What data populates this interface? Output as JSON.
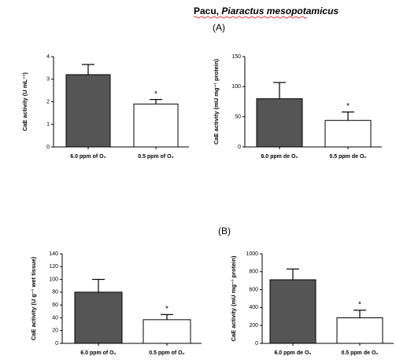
{
  "title": {
    "plain": "Pacu,",
    "italic": "Piaractus mesopotamicus"
  },
  "panels": [
    "(A)",
    "(B)"
  ],
  "chart_data": [
    {
      "type": "bar",
      "y_label": "CaE activity (U mL⁻¹)",
      "categories": [
        "6.0 ppm of O₂",
        "0.5 ppm of O₂"
      ],
      "values": [
        3.2,
        1.9
      ],
      "errors": [
        0.45,
        0.2
      ],
      "colors": [
        "#555555",
        "#ffffff"
      ],
      "annotations": [
        "*"
      ],
      "ylim": [
        0,
        4
      ],
      "yticks": [
        0,
        1,
        2,
        3,
        4
      ]
    },
    {
      "type": "bar",
      "y_label": "CaE activity (mU mg⁻¹ protein)",
      "categories": [
        "6.0 ppm de O₂",
        "0.5 ppm de O₂"
      ],
      "values": [
        80,
        44
      ],
      "errors": [
        27,
        14
      ],
      "colors": [
        "#555555",
        "#ffffff"
      ],
      "annotations": [
        "*"
      ],
      "ylim": [
        0,
        150
      ],
      "yticks": [
        0,
        50,
        100,
        150
      ]
    },
    {
      "type": "bar",
      "y_label": "CaE activity (U g⁻¹ wet tissue)",
      "categories": [
        "6.0 ppm of O₂",
        "0.5 ppm of O₂"
      ],
      "values": [
        80,
        37
      ],
      "errors": [
        20,
        8
      ],
      "colors": [
        "#555555",
        "#ffffff"
      ],
      "annotations": [
        "*"
      ],
      "ylim": [
        0,
        140
      ],
      "yticks": [
        0,
        20,
        40,
        60,
        80,
        100,
        120,
        140
      ]
    },
    {
      "type": "bar",
      "y_label": "CaE activity (mU mg⁻¹ protein)",
      "categories": [
        "6.0 ppm de O₂",
        "0.5 ppm de O₂"
      ],
      "values": [
        710,
        285
      ],
      "errors": [
        120,
        85
      ],
      "colors": [
        "#555555",
        "#ffffff"
      ],
      "annotations": [
        "*"
      ],
      "ylim": [
        0,
        1000
      ],
      "yticks": [
        0,
        200,
        400,
        600,
        800,
        1000
      ]
    }
  ]
}
